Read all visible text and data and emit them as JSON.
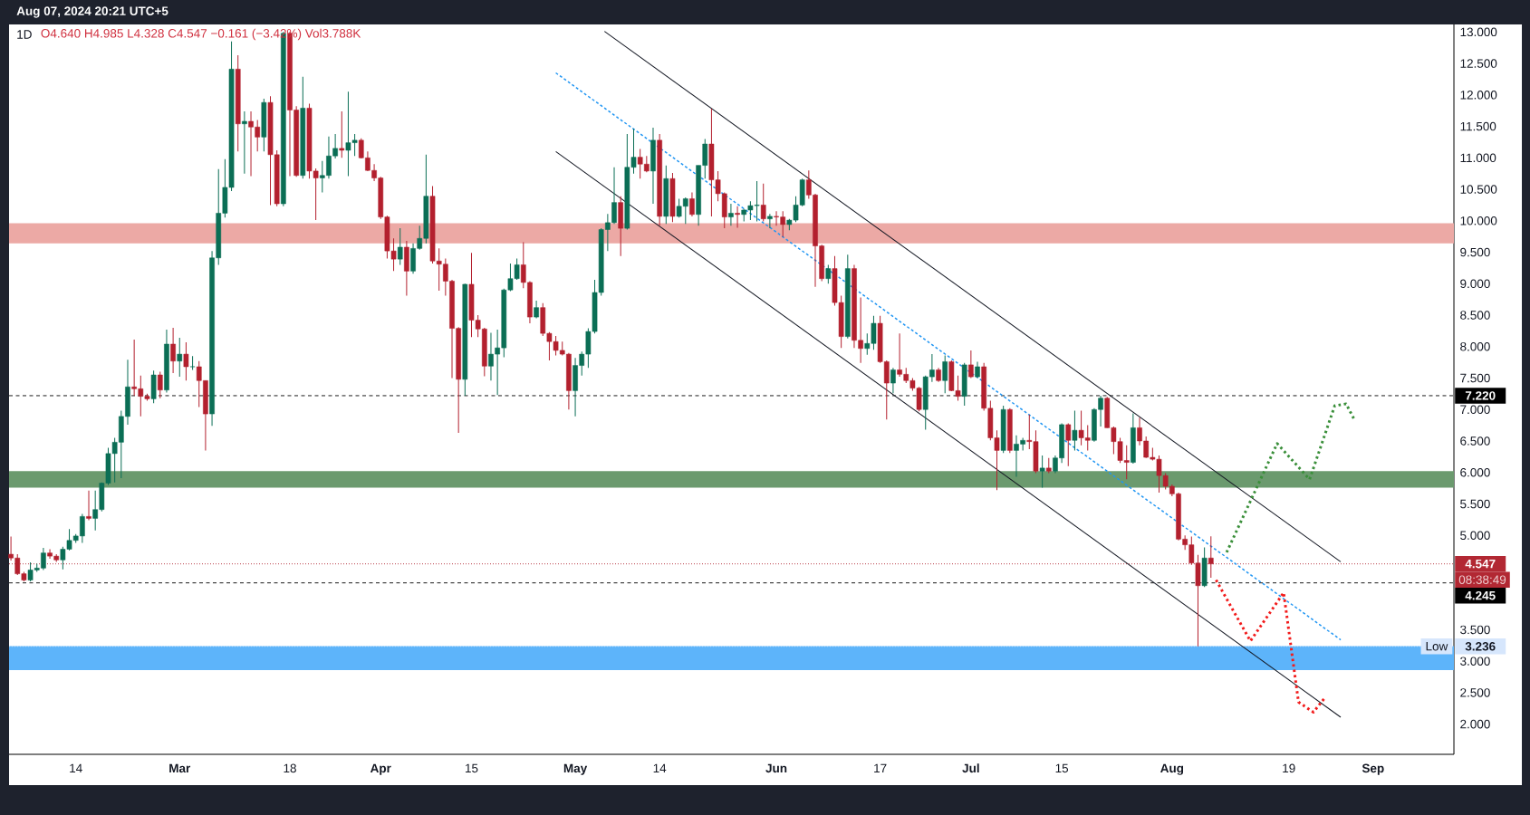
{
  "chart_data": {
    "type": "candlestick",
    "title": "1D",
    "subtitle": "O4.640 H4.985 L4.328 C4.547 −0.161 (−3.42%) Vol3.788K",
    "x": [
      "2024-02-04",
      "2024-02-05",
      "2024-02-06",
      "2024-02-07",
      "2024-02-08",
      "2024-02-09",
      "2024-02-10",
      "2024-02-11",
      "2024-02-12",
      "2024-02-13",
      "2024-02-14",
      "2024-02-15",
      "2024-02-16",
      "2024-02-17",
      "2024-02-18",
      "2024-02-19",
      "2024-02-20",
      "2024-02-21",
      "2024-02-22",
      "2024-02-23",
      "2024-02-24",
      "2024-02-25",
      "2024-02-26",
      "2024-02-27",
      "2024-02-28",
      "2024-02-29",
      "2024-03-01",
      "2024-03-02",
      "2024-03-03",
      "2024-03-04",
      "2024-03-05",
      "2024-03-06",
      "2024-03-07",
      "2024-03-08",
      "2024-03-09",
      "2024-03-10",
      "2024-03-11",
      "2024-03-12",
      "2024-03-13",
      "2024-03-14",
      "2024-03-15",
      "2024-03-16",
      "2024-03-17",
      "2024-03-18",
      "2024-03-19",
      "2024-03-20",
      "2024-03-21",
      "2024-03-22",
      "2024-03-23",
      "2024-03-24",
      "2024-03-25",
      "2024-03-26",
      "2024-03-27",
      "2024-03-28",
      "2024-03-29",
      "2024-03-30",
      "2024-03-31",
      "2024-04-01",
      "2024-04-02",
      "2024-04-03",
      "2024-04-04",
      "2024-04-05",
      "2024-04-06",
      "2024-04-07",
      "2024-04-08",
      "2024-04-09",
      "2024-04-10",
      "2024-04-11",
      "2024-04-12",
      "2024-04-13",
      "2024-04-14",
      "2024-04-15",
      "2024-04-16",
      "2024-04-17",
      "2024-04-18",
      "2024-04-19",
      "2024-04-20",
      "2024-04-21",
      "2024-04-22",
      "2024-04-23",
      "2024-04-24",
      "2024-04-25",
      "2024-04-26",
      "2024-04-27",
      "2024-04-28",
      "2024-04-29",
      "2024-04-30",
      "2024-05-01",
      "2024-05-02",
      "2024-05-03",
      "2024-05-04",
      "2024-05-05",
      "2024-05-06",
      "2024-05-07",
      "2024-05-08",
      "2024-05-09",
      "2024-05-10",
      "2024-05-11",
      "2024-05-12",
      "2024-05-13",
      "2024-05-14",
      "2024-05-15",
      "2024-05-16",
      "2024-05-17",
      "2024-05-18",
      "2024-05-19",
      "2024-05-20",
      "2024-05-21",
      "2024-05-22",
      "2024-05-23",
      "2024-05-24",
      "2024-05-25",
      "2024-05-26",
      "2024-05-27",
      "2024-05-28",
      "2024-05-29",
      "2024-05-30",
      "2024-05-31",
      "2024-06-01",
      "2024-06-02",
      "2024-06-03",
      "2024-06-04",
      "2024-06-05",
      "2024-06-06",
      "2024-06-07",
      "2024-06-08",
      "2024-06-09",
      "2024-06-10",
      "2024-06-11",
      "2024-06-12",
      "2024-06-13",
      "2024-06-14",
      "2024-06-15",
      "2024-06-16",
      "2024-06-17",
      "2024-06-18",
      "2024-06-19",
      "2024-06-20",
      "2024-06-21",
      "2024-06-22",
      "2024-06-23",
      "2024-06-24",
      "2024-06-25",
      "2024-06-26",
      "2024-06-27",
      "2024-06-28",
      "2024-06-29",
      "2024-06-30",
      "2024-07-01",
      "2024-07-02",
      "2024-07-03",
      "2024-07-04",
      "2024-07-05",
      "2024-07-06",
      "2024-07-07",
      "2024-07-08",
      "2024-07-09",
      "2024-07-10",
      "2024-07-11",
      "2024-07-12",
      "2024-07-13",
      "2024-07-14",
      "2024-07-15",
      "2024-07-16",
      "2024-07-17",
      "2024-07-18",
      "2024-07-19",
      "2024-07-20",
      "2024-07-21",
      "2024-07-22",
      "2024-07-23",
      "2024-07-24",
      "2024-07-25",
      "2024-07-26",
      "2024-07-27",
      "2024-07-28",
      "2024-07-29",
      "2024-07-30",
      "2024-07-31",
      "2024-08-01",
      "2024-08-02",
      "2024-08-03",
      "2024-08-04",
      "2024-08-05",
      "2024-08-06",
      "2024-08-07"
    ],
    "ohlc": [
      [
        4.7,
        4.98,
        4.6,
        4.64
      ],
      [
        4.64,
        4.7,
        4.37,
        4.39
      ],
      [
        4.39,
        4.42,
        4.27,
        4.29
      ],
      [
        4.29,
        4.57,
        4.27,
        4.45
      ],
      [
        4.45,
        4.55,
        4.42,
        4.48
      ],
      [
        4.48,
        4.8,
        4.45,
        4.72
      ],
      [
        4.72,
        4.78,
        4.63,
        4.67
      ],
      [
        4.67,
        4.7,
        4.58,
        4.61
      ],
      [
        4.61,
        4.82,
        4.46,
        4.78
      ],
      [
        4.78,
        5.1,
        4.76,
        4.92
      ],
      [
        4.92,
        5.02,
        4.88,
        4.99
      ],
      [
        4.99,
        5.34,
        4.88,
        5.3
      ],
      [
        5.3,
        5.71,
        5.24,
        5.27
      ],
      [
        5.27,
        5.71,
        5.08,
        5.41
      ],
      [
        5.41,
        5.84,
        5.38,
        5.83
      ],
      [
        5.83,
        6.39,
        5.8,
        6.3
      ],
      [
        6.3,
        6.55,
        5.84,
        6.48
      ],
      [
        6.48,
        6.98,
        5.91,
        6.89
      ],
      [
        6.89,
        7.79,
        6.76,
        7.36
      ],
      [
        7.36,
        8.11,
        7.22,
        7.33
      ],
      [
        7.33,
        7.54,
        6.89,
        7.21
      ],
      [
        7.21,
        7.25,
        7.14,
        7.17
      ],
      [
        7.17,
        7.62,
        7.1,
        7.55
      ],
      [
        7.55,
        7.6,
        7.18,
        7.31
      ],
      [
        7.31,
        8.27,
        7.27,
        8.04
      ],
      [
        8.04,
        8.3,
        7.58,
        7.77
      ],
      [
        7.77,
        8.14,
        7.52,
        7.88
      ],
      [
        7.88,
        8.07,
        7.46,
        7.68
      ],
      [
        7.68,
        7.85,
        7.63,
        7.68
      ],
      [
        7.68,
        7.77,
        7.04,
        7.46
      ],
      [
        7.46,
        7.46,
        6.35,
        6.93
      ],
      [
        6.93,
        9.52,
        6.74,
        9.41
      ],
      [
        9.41,
        10.82,
        9.3,
        10.12
      ],
      [
        10.12,
        10.98,
        10.05,
        10.53
      ],
      [
        10.53,
        12.85,
        10.47,
        12.41
      ],
      [
        12.41,
        12.63,
        11.1,
        11.54
      ],
      [
        11.54,
        11.74,
        10.75,
        11.58
      ],
      [
        11.58,
        11.74,
        10.71,
        11.49
      ],
      [
        11.49,
        11.6,
        11.1,
        11.33
      ],
      [
        11.33,
        11.94,
        11.1,
        11.88
      ],
      [
        11.88,
        11.98,
        10.25,
        11.05
      ],
      [
        11.05,
        11.12,
        10.23,
        10.27
      ],
      [
        10.27,
        13.0,
        10.23,
        12.98
      ],
      [
        12.98,
        13.0,
        10.71,
        11.76
      ],
      [
        11.76,
        11.82,
        10.7,
        10.72
      ],
      [
        10.72,
        12.29,
        10.67,
        11.79
      ],
      [
        11.79,
        11.86,
        10.67,
        10.79
      ],
      [
        10.79,
        10.83,
        10.01,
        10.68
      ],
      [
        10.68,
        10.95,
        10.45,
        10.72
      ],
      [
        10.72,
        11.34,
        10.67,
        11.03
      ],
      [
        11.03,
        11.38,
        10.99,
        11.15
      ],
      [
        11.15,
        11.74,
        11.0,
        11.12
      ],
      [
        11.12,
        12.05,
        10.71,
        11.24
      ],
      [
        11.24,
        11.38,
        11.03,
        11.28
      ],
      [
        11.28,
        11.31,
        10.99,
        11.0
      ],
      [
        11.0,
        11.1,
        10.79,
        10.8
      ],
      [
        10.8,
        10.9,
        10.63,
        10.68
      ],
      [
        10.68,
        10.7,
        10.03,
        10.06
      ],
      [
        10.06,
        10.08,
        9.4,
        9.52
      ],
      [
        9.52,
        9.72,
        9.2,
        9.39
      ],
      [
        9.39,
        9.88,
        9.3,
        9.58
      ],
      [
        9.58,
        9.68,
        8.81,
        9.2
      ],
      [
        9.2,
        9.64,
        9.16,
        9.56
      ],
      [
        9.56,
        9.92,
        9.54,
        9.72
      ],
      [
        9.72,
        11.05,
        9.64,
        10.39
      ],
      [
        10.39,
        10.55,
        9.32,
        9.36
      ],
      [
        9.36,
        9.56,
        8.89,
        9.31
      ],
      [
        9.31,
        9.4,
        8.81,
        9.04
      ],
      [
        9.04,
        9.06,
        7.5,
        8.29
      ],
      [
        8.29,
        8.31,
        6.63,
        7.48
      ],
      [
        7.48,
        9.0,
        7.22,
        8.99
      ],
      [
        8.99,
        9.49,
        8.15,
        8.42
      ],
      [
        8.42,
        8.5,
        8.15,
        8.28
      ],
      [
        8.28,
        8.3,
        7.53,
        7.69
      ],
      [
        7.69,
        8.22,
        7.46,
        7.88
      ],
      [
        7.88,
        8.27,
        7.23,
        7.98
      ],
      [
        7.98,
        8.92,
        7.83,
        8.9
      ],
      [
        8.9,
        9.32,
        8.88,
        9.08
      ],
      [
        9.08,
        9.4,
        9.06,
        9.3
      ],
      [
        9.3,
        9.66,
        8.93,
        9.02
      ],
      [
        9.02,
        9.04,
        8.37,
        8.47
      ],
      [
        8.47,
        8.73,
        8.45,
        8.62
      ],
      [
        8.62,
        8.69,
        8.17,
        8.21
      ],
      [
        8.21,
        8.23,
        7.78,
        8.08
      ],
      [
        8.08,
        8.17,
        7.86,
        7.94
      ],
      [
        7.94,
        8.08,
        7.86,
        7.88
      ],
      [
        7.88,
        7.9,
        7.0,
        7.3
      ],
      [
        7.3,
        7.82,
        6.89,
        7.7
      ],
      [
        7.7,
        7.92,
        7.54,
        7.88
      ],
      [
        7.88,
        8.29,
        7.66,
        8.24
      ],
      [
        8.24,
        9.06,
        8.21,
        8.86
      ],
      [
        8.86,
        9.88,
        8.81,
        9.86
      ],
      [
        9.86,
        10.11,
        9.52,
        9.97
      ],
      [
        9.97,
        10.85,
        9.95,
        10.29
      ],
      [
        10.29,
        10.39,
        9.44,
        9.88
      ],
      [
        9.88,
        11.38,
        9.86,
        10.85
      ],
      [
        10.85,
        11.46,
        10.75,
        11.01
      ],
      [
        11.01,
        11.14,
        10.67,
        10.9
      ],
      [
        10.9,
        11.03,
        10.77,
        10.79
      ],
      [
        10.79,
        11.48,
        10.27,
        11.28
      ],
      [
        11.28,
        11.38,
        9.92,
        10.07
      ],
      [
        10.07,
        10.88,
        9.95,
        10.67
      ],
      [
        10.67,
        10.76,
        9.98,
        10.07
      ],
      [
        10.07,
        10.35,
        10.05,
        10.23
      ],
      [
        10.23,
        10.37,
        9.95,
        10.35
      ],
      [
        10.35,
        10.45,
        10.07,
        10.1
      ],
      [
        10.1,
        10.88,
        9.92,
        10.88
      ],
      [
        10.88,
        11.3,
        10.67,
        11.22
      ],
      [
        11.22,
        11.78,
        10.07,
        10.65
      ],
      [
        10.65,
        10.79,
        10.31,
        10.43
      ],
      [
        10.43,
        10.45,
        9.88,
        10.06
      ],
      [
        10.06,
        10.27,
        9.92,
        10.12
      ],
      [
        10.12,
        10.23,
        9.89,
        10.1
      ],
      [
        10.1,
        10.19,
        9.99,
        10.17
      ],
      [
        10.17,
        10.31,
        10.01,
        10.24
      ],
      [
        10.24,
        10.63,
        9.99,
        10.25
      ],
      [
        10.25,
        10.59,
        9.99,
        10.03
      ],
      [
        10.03,
        10.11,
        9.88,
        10.07
      ],
      [
        10.07,
        10.15,
        9.92,
        10.06
      ],
      [
        10.06,
        10.15,
        9.74,
        9.94
      ],
      [
        9.94,
        10.03,
        9.85,
        10.01
      ],
      [
        10.01,
        10.39,
        9.98,
        10.25
      ],
      [
        10.25,
        10.67,
        10.23,
        10.65
      ],
      [
        10.65,
        10.8,
        10.35,
        10.41
      ],
      [
        10.41,
        10.43,
        8.95,
        9.6
      ],
      [
        9.6,
        9.62,
        9.04,
        9.08
      ],
      [
        9.08,
        9.3,
        9.0,
        9.24
      ],
      [
        9.24,
        9.44,
        8.65,
        8.7
      ],
      [
        8.7,
        8.81,
        7.98,
        8.16
      ],
      [
        8.16,
        9.46,
        8.13,
        9.24
      ],
      [
        9.24,
        9.3,
        7.98,
        8.1
      ],
      [
        8.1,
        8.78,
        7.74,
        7.97
      ],
      [
        7.97,
        8.21,
        7.87,
        8.05
      ],
      [
        8.05,
        8.49,
        7.95,
        8.37
      ],
      [
        8.37,
        8.49,
        7.74,
        7.76
      ],
      [
        7.76,
        7.78,
        6.84,
        7.42
      ],
      [
        7.42,
        7.66,
        7.26,
        7.63
      ],
      [
        7.63,
        8.21,
        7.52,
        7.56
      ],
      [
        7.56,
        7.66,
        7.42,
        7.46
      ],
      [
        7.46,
        7.5,
        7.3,
        7.34
      ],
      [
        7.34,
        7.36,
        6.97,
        7.0
      ],
      [
        7.0,
        7.54,
        6.68,
        7.52
      ],
      [
        7.52,
        7.88,
        7.44,
        7.63
      ],
      [
        7.63,
        7.66,
        7.44,
        7.46
      ],
      [
        7.46,
        7.86,
        7.26,
        7.76
      ],
      [
        7.76,
        7.78,
        7.29,
        7.3
      ],
      [
        7.3,
        7.54,
        7.14,
        7.21
      ],
      [
        7.21,
        7.74,
        7.06,
        7.71
      ],
      [
        7.71,
        7.94,
        7.5,
        7.52
      ],
      [
        7.52,
        7.76,
        7.5,
        7.68
      ],
      [
        7.68,
        7.74,
        6.98,
        7.02
      ],
      [
        7.02,
        7.14,
        6.51,
        6.55
      ],
      [
        6.55,
        6.67,
        5.72,
        6.35
      ],
      [
        6.35,
        7.06,
        6.31,
        7.0
      ],
      [
        7.0,
        7.02,
        6.31,
        6.35
      ],
      [
        6.35,
        6.59,
        5.93,
        6.45
      ],
      [
        6.45,
        6.55,
        6.35,
        6.51
      ],
      [
        6.51,
        6.92,
        6.37,
        6.49
      ],
      [
        6.49,
        6.67,
        5.99,
        6.02
      ],
      [
        6.02,
        6.27,
        5.76,
        6.07
      ],
      [
        6.07,
        6.23,
        5.99,
        6.02
      ],
      [
        6.02,
        6.27,
        5.99,
        6.23
      ],
      [
        6.23,
        6.78,
        6.15,
        6.76
      ],
      [
        6.76,
        6.78,
        6.1,
        6.51
      ],
      [
        6.51,
        6.98,
        6.35,
        6.67
      ],
      [
        6.67,
        6.98,
        6.43,
        6.55
      ],
      [
        6.55,
        6.75,
        6.35,
        6.51
      ],
      [
        6.51,
        7.02,
        6.49,
        7.0
      ],
      [
        7.0,
        7.22,
        6.73,
        7.18
      ],
      [
        7.18,
        7.2,
        6.71,
        6.71
      ],
      [
        6.71,
        6.73,
        6.29,
        6.49
      ],
      [
        6.49,
        6.55,
        6.15,
        6.19
      ],
      [
        6.19,
        6.43,
        5.89,
        6.16
      ],
      [
        6.16,
        6.94,
        6.14,
        6.71
      ],
      [
        6.71,
        6.87,
        6.43,
        6.5
      ],
      [
        6.5,
        6.57,
        6.23,
        6.24
      ],
      [
        6.24,
        6.39,
        6.19,
        6.21
      ],
      [
        6.21,
        6.27,
        5.68,
        5.95
      ],
      [
        5.95,
        5.99,
        5.73,
        5.78
      ],
      [
        5.78,
        5.81,
        5.62,
        5.66
      ],
      [
        5.66,
        5.68,
        4.92,
        4.94
      ],
      [
        4.94,
        5.0,
        4.77,
        4.85
      ],
      [
        4.85,
        4.98,
        4.53,
        4.56
      ],
      [
        4.56,
        4.69,
        3.236,
        4.2
      ],
      [
        4.2,
        4.81,
        4.18,
        4.64
      ],
      [
        4.64,
        4.985,
        4.328,
        4.547
      ]
    ],
    "series": [
      {
        "type": "line",
        "x": [
          "2024-05-05T12:00",
          "2024-08-27"
        ],
        "values": [
          13.01,
          4.58
        ],
        "color": "#131722",
        "line_style": "solid"
      },
      {
        "type": "line",
        "x": [
          "2024-04-28",
          "2024-08-27"
        ],
        "values": [
          11.1,
          2.11
        ],
        "color": "#131722",
        "line_style": "solid"
      },
      {
        "type": "line",
        "x": [
          "2024-04-28",
          "2024-08-27"
        ],
        "values": [
          12.35,
          3.34
        ],
        "color": "#2196f3",
        "line_style": "dashed"
      },
      {
        "type": "line",
        "x": [
          "2024-08-09T10:00",
          "2024-08-17T05:00",
          "2024-08-22T05:00",
          "2024-08-26T02:00",
          "2024-08-27T20:00",
          "2024-08-29T05:00"
        ],
        "values": [
          4.73,
          6.46,
          5.89,
          7.06,
          7.09,
          6.82
        ],
        "color": "#3a8f3a",
        "line_style": "dotted"
      },
      {
        "type": "line",
        "x": [
          "2024-08-07T19:00",
          "2024-08-13T02:00",
          "2024-08-18T05:00",
          "2024-08-20T12:00",
          "2024-08-22T19:00",
          "2024-08-24T10:00"
        ],
        "values": [
          4.29,
          3.32,
          4.09,
          2.35,
          2.19,
          2.4
        ],
        "color": "#f21b1b",
        "line_style": "dotted"
      }
    ],
    "xlim": [
      "2024-02-03T17:00",
      "2024-09-13T11:00"
    ],
    "xticks": [
      {
        "value": "2024-02-14",
        "label": "14"
      },
      {
        "value": "2024-03-01",
        "label": "Mar"
      },
      {
        "value": "2024-03-18",
        "label": "18"
      },
      {
        "value": "2024-04-01",
        "label": "Apr"
      },
      {
        "value": "2024-04-15",
        "label": "15"
      },
      {
        "value": "2024-05-01",
        "label": "May"
      },
      {
        "value": "2024-05-14",
        "label": "14"
      },
      {
        "value": "2024-06-01",
        "label": "Jun"
      },
      {
        "value": "2024-06-17",
        "label": "17"
      },
      {
        "value": "2024-07-01",
        "label": "Jul"
      },
      {
        "value": "2024-07-15",
        "label": "15"
      },
      {
        "value": "2024-08-01",
        "label": "Aug"
      },
      {
        "value": "2024-08-19",
        "label": "19"
      },
      {
        "value": "2024-09-01",
        "label": "Sep"
      }
    ],
    "ylim": [
      1.52,
      13.12
    ],
    "yticks": [
      {
        "value": 2,
        "label": "2.000"
      },
      {
        "value": 2.5,
        "label": "2.500"
      },
      {
        "value": 3,
        "label": "3.000"
      },
      {
        "value": 3.5,
        "label": "3.500"
      },
      {
        "value": 5,
        "label": "5.000"
      },
      {
        "value": 5.5,
        "label": "5.500"
      },
      {
        "value": 6,
        "label": "6.000"
      },
      {
        "value": 6.5,
        "label": "6.500"
      },
      {
        "value": 7,
        "label": "7.000"
      },
      {
        "value": 7.5,
        "label": "7.500"
      },
      {
        "value": 8,
        "label": "8.000"
      },
      {
        "value": 8.5,
        "label": "8.500"
      },
      {
        "value": 9,
        "label": "9.000"
      },
      {
        "value": 9.5,
        "label": "9.500"
      },
      {
        "value": 10,
        "label": "10.000"
      },
      {
        "value": 10.5,
        "label": "10.500"
      },
      {
        "value": 11,
        "label": "11.000"
      },
      {
        "value": 11.5,
        "label": "11.500"
      },
      {
        "value": 12,
        "label": "12.000"
      },
      {
        "value": 12.5,
        "label": "12.500"
      },
      {
        "value": 13,
        "label": "13.000"
      }
    ],
    "bands": [
      {
        "axis": "y",
        "from": 9.64,
        "to": 9.96,
        "color": "#eca9a5"
      },
      {
        "axis": "y",
        "from": 5.76,
        "to": 6.02,
        "color": "#6b9a6e"
      },
      {
        "axis": "y",
        "from": 2.86,
        "to": 3.24,
        "color": "#5db4fa"
      }
    ],
    "ref_lines": [
      {
        "axis": "y",
        "value": 7.22,
        "label": "7.220",
        "color": "#000000",
        "line_style": "dashed"
      },
      {
        "axis": "y",
        "value": 4.547,
        "label": "4.547",
        "color": "#b22833",
        "line_style": "dotted"
      },
      {
        "axis": "y",
        "value": 4.245,
        "label": "4.245",
        "color": "#000000",
        "line_style": "dashed"
      },
      {
        "axis": "y",
        "value": 3.236,
        "label": "3.236",
        "color": "#d6e6fc",
        "line_style": "dotted"
      }
    ],
    "annotations": [
      "Aug 07, 2024 20:21 UTC+5",
      {
        "text": "Low",
        "x": "2024-09-10T19:00",
        "y": 3.236
      },
      "08:38:49"
    ]
  }
}
